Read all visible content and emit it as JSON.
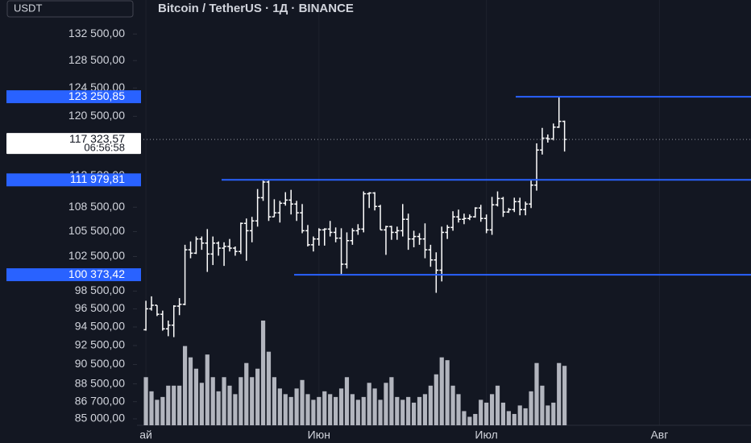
{
  "chart_data": {
    "type": "ohlc",
    "title": "Bitcoin / TetherUS · 1Д · BINANCE",
    "currency": "USDT",
    "x": [
      0,
      1,
      2,
      3,
      4,
      5,
      6,
      7,
      8,
      9,
      10,
      11,
      12,
      13,
      14,
      15,
      16,
      17,
      18,
      19,
      20,
      21,
      22,
      23,
      24,
      25,
      26,
      27,
      28,
      29,
      30,
      31,
      32,
      33,
      34,
      35,
      36,
      37,
      38,
      39,
      40,
      41,
      42,
      43,
      44,
      45,
      46,
      47,
      48,
      49,
      50,
      51,
      52,
      53,
      54,
      55,
      56,
      57,
      58,
      59,
      60,
      61,
      62,
      63,
      64,
      65,
      66,
      67,
      68,
      69,
      70,
      71,
      72,
      73,
      74,
      75
    ],
    "open": [
      94200,
      96500,
      96900,
      95900,
      94300,
      94700,
      96800,
      97000,
      103300,
      102900,
      104600,
      104100,
      102800,
      104100,
      103500,
      103700,
      103500,
      103100,
      106500,
      105600,
      106800,
      109700,
      111700,
      107300,
      107800,
      109000,
      109400,
      108900,
      107800,
      105600,
      103900,
      104600,
      105700,
      105800,
      105400,
      104700,
      101600,
      104400,
      105600,
      105800,
      110200,
      110300,
      108600,
      105700,
      106100,
      105400,
      105600,
      107000,
      104600,
      104900,
      104600,
      103300,
      102100,
      100900,
      105400,
      106000,
      107300,
      107000,
      107100,
      107300,
      108400,
      107100,
      105700,
      108800,
      109600,
      107900,
      108200,
      109200,
      108200,
      108900,
      111300,
      115900,
      117500,
      117400,
      119000,
      119800
    ],
    "high": [
      97400,
      97900,
      96900,
      96300,
      95200,
      96900,
      97700,
      103900,
      104300,
      104900,
      104900,
      105800,
      104900,
      104300,
      104200,
      104600,
      103700,
      106600,
      107100,
      107300,
      110800,
      111900,
      111900,
      109500,
      109300,
      110400,
      110700,
      109300,
      108900,
      106300,
      104900,
      105900,
      105900,
      106800,
      106000,
      105900,
      105400,
      105900,
      106400,
      110500,
      110400,
      110400,
      108800,
      106200,
      106200,
      106100,
      108900,
      107700,
      105600,
      105300,
      106500,
      103900,
      103000,
      106100,
      106300,
      108000,
      108200,
      107700,
      107600,
      108500,
      108800,
      107600,
      109800,
      110500,
      109800,
      108400,
      109700,
      109700,
      109200,
      111900,
      116800,
      118900,
      118000,
      119500,
      123250.85,
      119900
    ],
    "low": [
      94100,
      96300,
      95700,
      94100,
      93500,
      93400,
      95800,
      96900,
      102300,
      102800,
      103300,
      100700,
      101500,
      102600,
      101400,
      103100,
      102600,
      102800,
      102000,
      104200,
      106100,
      109300,
      106800,
      107300,
      106600,
      108700,
      107600,
      106800,
      105300,
      103700,
      103100,
      103800,
      103800,
      104900,
      104200,
      100400,
      101100,
      103900,
      105100,
      105400,
      108400,
      108100,
      105700,
      102700,
      104500,
      104500,
      104900,
      103300,
      103600,
      103900,
      102300,
      101300,
      98300,
      99600,
      104600,
      105600,
      106600,
      106400,
      106900,
      107200,
      106700,
      105300,
      105100,
      108600,
      107300,
      107800,
      107900,
      107500,
      107500,
      108400,
      110600,
      115300,
      116900,
      117200,
      118900,
      115700
    ],
    "close": [
      96500,
      96900,
      95900,
      94300,
      94700,
      96800,
      97000,
      103300,
      102900,
      104600,
      104100,
      102800,
      104100,
      103500,
      103700,
      103500,
      103100,
      106500,
      105600,
      106800,
      109700,
      111700,
      107300,
      107800,
      109000,
      109400,
      108900,
      107800,
      105600,
      103900,
      104600,
      105700,
      105800,
      105400,
      104700,
      101600,
      104400,
      105600,
      105800,
      110200,
      110300,
      108600,
      105700,
      106100,
      105400,
      105600,
      107000,
      104600,
      104900,
      104600,
      103300,
      102100,
      100900,
      105400,
      106000,
      107300,
      107000,
      107100,
      107300,
      108400,
      107100,
      105700,
      108800,
      109600,
      107900,
      108200,
      109200,
      108200,
      108900,
      111300,
      115900,
      117500,
      117400,
      119000,
      119800,
      117323.57
    ],
    "volume": [
      17,
      12,
      9,
      10,
      14,
      14,
      14,
      28,
      24,
      20,
      15,
      25,
      17,
      12,
      17,
      14,
      11,
      17,
      22,
      17,
      20,
      37,
      26,
      17,
      13,
      11,
      10,
      13,
      16,
      11,
      9,
      10,
      12,
      11,
      10,
      13,
      17,
      11,
      9,
      10,
      15,
      13,
      9,
      15,
      17,
      10,
      9,
      10,
      8,
      10,
      11,
      14,
      18,
      24,
      23,
      14,
      11,
      5,
      3,
      4,
      9,
      8,
      11,
      14,
      8,
      5,
      4,
      7,
      6,
      12,
      22,
      14,
      7,
      8,
      22,
      21
    ],
    "color": "#ffffff",
    "volume_color": "#b2b5be",
    "log_scale": true,
    "grid": true,
    "ylim": [
      84370,
      137800
    ],
    "yticks": [
      {
        "value": 132500,
        "label": "132 500,00"
      },
      {
        "value": 128500,
        "label": "128 500,00"
      },
      {
        "value": 124500,
        "label": "124 500,00"
      },
      {
        "value": 120500,
        "label": "120 500,00"
      },
      {
        "value": 112500,
        "label": "112 500,00"
      },
      {
        "value": 108500,
        "label": "108 500,00"
      },
      {
        "value": 105500,
        "label": "105 500,00"
      },
      {
        "value": 102500,
        "label": "102 500,00"
      },
      {
        "value": 98500,
        "label": "98 500,00"
      },
      {
        "value": 96500,
        "label": "96 500,00"
      },
      {
        "value": 94500,
        "label": "94 500,00"
      },
      {
        "value": 92500,
        "label": "92 500,00"
      },
      {
        "value": 90500,
        "label": "90 500,00"
      },
      {
        "value": 88500,
        "label": "88 500,00"
      },
      {
        "value": 86700,
        "label": "86 700,00"
      },
      {
        "value": 85000,
        "label": "85 000,00"
      }
    ],
    "xlim": [
      -1.6,
      108.4
    ],
    "xticks": [
      {
        "value": 0,
        "label": "ай"
      },
      {
        "value": 31,
        "label": "Июн"
      },
      {
        "value": 61,
        "label": "Июл"
      },
      {
        "value": 92,
        "label": "Авг"
      }
    ],
    "price_lines": {
      "color": "#2962ff",
      "values": [
        123250.85,
        111979.81,
        100373.42
      ],
      "value_labels": [
        "123 250,85",
        "111 979,81",
        "100 373,42"
      ]
    },
    "last_price": {
      "value": 117323.57,
      "label": "117 323,57",
      "countdown": "06:56:58"
    }
  }
}
